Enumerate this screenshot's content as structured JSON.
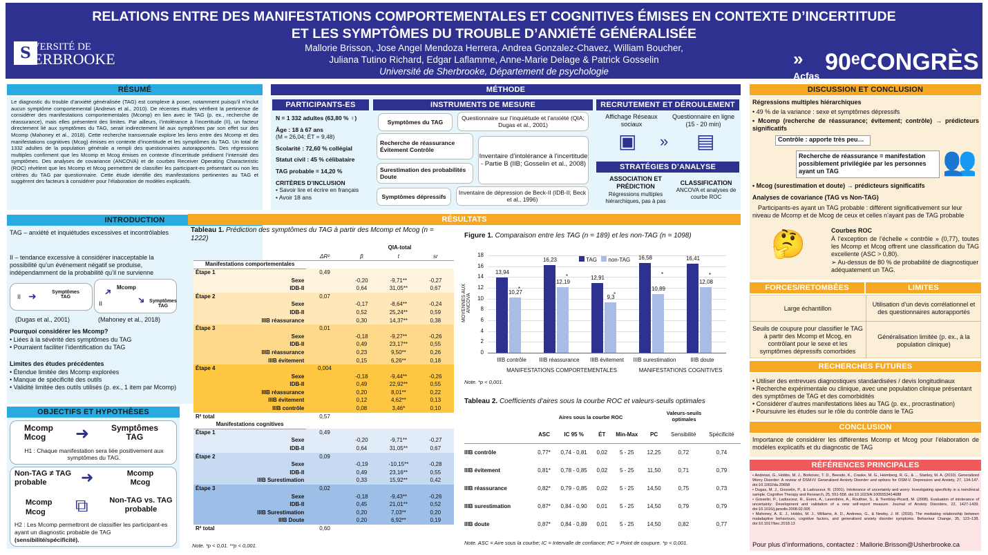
{
  "header": {
    "title_1": "RELATIONS ENTRE DES MANIFESTATIONS COMPORTEMENTALES ET COGNITIVES ÉMISES EN CONTEXTE D’INCERTITUDE",
    "title_2": "ET LES SYMPTÔMES DU TROUBLE D’ANXIÉTÉ GÉNÉRALISÉE",
    "authors_1": "Mallorie Brisson, Jose Angel Mendoza Herrera, Andrea Gonzalez-Chavez, William Boucher,",
    "authors_2": "Juliana Tutino Richard, Edgar Laflamme, Anne-Marie Delage & Patrick Gosselin",
    "affil": "Université de Sherbrooke, Département de psychologie",
    "univ_1": "UNIVERSITÉ DE",
    "univ_2": "SHERBROOKE",
    "acfas": "Acfas",
    "congres": "90ᵉCONGRÈS"
  },
  "resume": {
    "title": "RÉSUMÉ",
    "text": "Le diagnostic du trouble d’anxiété généralisée (TAG) est complexe à poser, notamment puisqu’il n’inclut aucun symptôme comportemental (Andrews et al., 2010). De récentes études vérifient la pertinence de considérer des manifestations comportementales (Mcomp) en lien avec le TAG (p. ex., recherche de réassurance), mais elles présentent des limites. Par ailleurs, l’intolérance à l’incertitude (II), un facteur directement lié aux symptômes du TAG, serait indirectement lié aux symptômes par son effet sur des Mcomp (Mahoney et al., 2018). Cette recherche transversale explore les liens entre des Mcomp et des manifestations cognitives (Mcog) émises en contexte d’incertitude et les symptômes du TAG. Un total de 1332 adultes de la population générale a rempli des questionnaires autorapportés. Des régressions multiples confirment que les Mcomp et Mcog émises en contexte d’incertitude prédisent l’intensité des symptômes. Des analyses de covariance (ANCOVA) et de courbes Receiver Operating Characteristic (ROC) révèlent que les Mcomp et Mcog permettent de classifier les participant-es présentant ou non les critères du TAG par questionnaire. Cette étude identifie des manifestations pertinentes au TAG et suggèrent des facteurs à considérer pour l’élaboration de modèles explicatifs."
  },
  "intro": {
    "title": "INTRODUCTION",
    "tag": "TAG – anxiété et inquiétudes excessives et incontrôlables",
    "ii": "II – tendance excessive à considérer inacceptable la possibilité qu’un événement négatif se produise, indépendamment de la probabilité qu’il ne survienne",
    "d1_ii": "II",
    "d1_sym": "Symptômes TAG",
    "d2_ii": "II",
    "d2_mcomp": "Mcomp",
    "d2_sym": "Symptômes TAG",
    "cite1": "(Dugas et al., 2001)",
    "cite2": "(Mahoney et al., 2018)",
    "q": "Pourquoi considérer les Mcomp?",
    "q_items": [
      "Liées à la sévérité des symptômes du TAG",
      "Pourraient faciliter l’identification du TAG"
    ],
    "lim": "Limites des études précédentes",
    "lim_items": [
      "Étendue limitée des Mcomp explorées",
      "Manque de spécificité des outils",
      "Validité limitée des outils utilisés (p. ex., 1 item par Mcomp)"
    ]
  },
  "obj": {
    "title": "OBJECTIFS ET HYPOTHÈSES",
    "h1_left": "Mcomp Mcog",
    "h1_right": "Symptômes TAG",
    "h1": "H1 : Chaque manifestation sera liée positivement aux symptômes du TAG.",
    "h2_a": "Non-TAG ≠ TAG probable",
    "h2_b": "Mcomp Mcog",
    "h2_c": "Mcomp Mcog",
    "h2_d": "Non-TAG vs. TAG probable",
    "h2": "H2 : Les Mcomp permettront de classifier les participant-es ayant un diagnostic probable de TAG",
    "h2_bold": "(sensibilité/spécificité)."
  },
  "methode": {
    "title": "MÉTHODE",
    "participants": {
      "title": "PARTICIPANTS-ES",
      "n": "N = 1 332 adultes (63,80 % ♀)",
      "age": "Âge : 18 à 67 ans",
      "age_sub": "(M = 26,04; ÉT = 9,48)",
      "scol": "Scolarité : 72,60 % collégial",
      "statut": "Statut civil : 45 % célibataire",
      "tag": "TAG probable = 14,20 %",
      "crit": "CRITÈRES D’INCLUSION",
      "crit_items": [
        "Savoir lire et écrire en français",
        "Avoir 18 ans"
      ]
    },
    "instruments": {
      "title": "INSTRUMENTS DE MESURE",
      "p1": "Symptômes du TAG",
      "p2": "Questionnaire sur l’inquiétude et l’anxiété (QIA; Dugas et al., 2001)",
      "p3": "Recherche de réassurance Évitement Contrôle",
      "p4": "Surestimation des probabilités Doute",
      "p5": "Inventaire d’intolérance à l’incertitude - Partie B (IIB; Gosselin et al., 2008)",
      "p6": "Symptômes dépressifs",
      "p7": "Inventaire de dépression de Beck-II (IDB-II; Beck et al., 1996)"
    },
    "recrut": {
      "title": "RECRUTEMENT ET DÉROULEMENT",
      "a": "Affichage Réseaux sociaux",
      "b": "Questionnaire en ligne (15 - 20 min)"
    },
    "strat": {
      "title": "STRATÉGIES D’ANALYSE",
      "a1": "ASSOCIATION ET PRÉDICTION",
      "a2": "Régressions multiples hiérarchiques, pas à pas",
      "c1": "CLASSIFICATION",
      "c2": "ANCOVA et analyses de courbe ROC"
    }
  },
  "resultats": {
    "title": "RÉSULTATS",
    "t1_title": "Tableau 1.",
    "t1_caption": "Prédiction des symptômes du TAG à partir des Mcomp et Mcog (n = 1222)",
    "t1_head": "QIA-total",
    "t1_cols": [
      "",
      "ΔR²",
      "β",
      "t",
      "sr"
    ],
    "t1_note": "Note. *p < 0,01. **p < 0,001.",
    "t1_rows": [
      [
        "Manifestations comportementales",
        "",
        "",
        "",
        ""
      ],
      [
        "Étape 1",
        "0,49",
        "",
        "",
        ""
      ],
      [
        "Sexe",
        "",
        "-0,20",
        "-9,71**",
        "-0,27"
      ],
      [
        "IDB-II",
        "",
        "0,64",
        "31,05**",
        "0,67"
      ],
      [
        "Étape 2",
        "0,07",
        "",
        "",
        ""
      ],
      [
        "Sexe",
        "",
        "-0,17",
        "-8,64**",
        "-0,24"
      ],
      [
        "IDB-II",
        "",
        "0,52",
        "25,24**",
        "0,59"
      ],
      [
        "IIIB réassurance",
        "",
        "0,30",
        "14,37**",
        "0,38"
      ],
      [
        "Étape 3",
        "0,01",
        "",
        "",
        ""
      ],
      [
        "Sexe",
        "",
        "-0,18",
        "-9,27**",
        "-0,26"
      ],
      [
        "IDB-II",
        "",
        "0,49",
        "23,17**",
        "0,55"
      ],
      [
        "IIIB réassurance",
        "",
        "0,23",
        "9,50**",
        "0,26"
      ],
      [
        "IIIB évitement",
        "",
        "0,15",
        "6,26**",
        "0,18"
      ],
      [
        "Étape 4",
        "0,004",
        "",
        "",
        ""
      ],
      [
        "Sexe",
        "",
        "-0,18",
        "-9,44**",
        "-0,26"
      ],
      [
        "IDB-II",
        "",
        "0,49",
        "22,92**",
        "0,55"
      ],
      [
        "IIIB réassurance",
        "",
        "0,20",
        "8,01**",
        "0,22"
      ],
      [
        "IIIB évitement",
        "",
        "0,12",
        "4,62**",
        "0,13"
      ],
      [
        "IIIB contrôle",
        "",
        "0,08",
        "3,46*",
        "0,10"
      ],
      [
        "R² total",
        "0,57",
        "",
        "",
        ""
      ],
      [
        "Manifestations cognitives",
        "",
        "",
        "",
        ""
      ],
      [
        "Étape 1",
        "0,49",
        "",
        "",
        ""
      ],
      [
        "Sexe",
        "",
        "-0,20",
        "-9,71**",
        "-0,27"
      ],
      [
        "IDB-II",
        "",
        "0,64",
        "31,05**",
        "0,67"
      ],
      [
        "Étape 2",
        "0,09",
        "",
        "",
        ""
      ],
      [
        "Sexe",
        "",
        "-0,19",
        "-10,15**",
        "-0,28"
      ],
      [
        "IDB-II",
        "",
        "0,49",
        "23,16**",
        "0,55"
      ],
      [
        "IIIB Surestimation",
        "",
        "0,33",
        "15,92**",
        "0,42"
      ],
      [
        "Étape 3",
        "0,02",
        "",
        "",
        ""
      ],
      [
        "Sexe",
        "",
        "-0,18",
        "-9,43**",
        "-0,26"
      ],
      [
        "IDB-II",
        "",
        "0,45",
        "21,01**",
        "0,52"
      ],
      [
        "IIIB Surestimation",
        "",
        "0,20",
        "7,03**",
        "0,20"
      ],
      [
        "IIIB Doute",
        "",
        "0,20",
        "6,92**",
        "0,19"
      ],
      [
        "R² total",
        "0,60",
        "",
        "",
        ""
      ]
    ],
    "fig1_title": "Figure 1.",
    "fig1_caption": "Comparaison entre les TAG (n = 189) et les non-TAG (n = 1098)",
    "fig1_note": "Note. *p < 0,001.",
    "t2_title": "Tableau 2.",
    "t2_caption": "Coefficients d’aires sous la courbe ROC et valeurs-seuils optimales",
    "t2_h1": "Aires sous la courbe ROC",
    "t2_h2": "Valeurs-seuils optimales",
    "t2_cols": [
      "",
      "ASC",
      "IC 95 %",
      "ÉT",
      "Min-Max",
      "PC",
      "Sensibilité",
      "Spécificité"
    ],
    "t2_rows": [
      [
        "IIIB contrôle",
        "0,77*",
        "0,74 - 0,81",
        "0,02",
        "5 - 25",
        "12,25",
        "0,72",
        "0,74"
      ],
      [
        "IIIB évitement",
        "0,81*",
        "0,78 - 0,85",
        "0,02",
        "5 - 25",
        "11,50",
        "0,71",
        "0,79"
      ],
      [
        "IIIB réassurance",
        "0,82*",
        "0,79 - 0,85",
        "0,02",
        "5 - 25",
        "14,50",
        "0,75",
        "0,73"
      ],
      [
        "IIIB surestimation",
        "0,87*",
        "0,84 - 0,90",
        "0,01",
        "5 - 25",
        "14,50",
        "0,79",
        "0,79"
      ],
      [
        "IIIB doute",
        "0,87*",
        "0,84 - 0,89",
        "0,01",
        "5 - 25",
        "14,50",
        "0,82",
        "0,77"
      ]
    ],
    "t2_note": "Note. ASC = Aire sous la courbe; IC = Intervalle de confiance; PC = Point de coupure. *p < 0,001."
  },
  "chart_data": {
    "type": "bar",
    "categories": [
      "IIIB contrôle",
      "IIIB réassurance",
      "IIIB évitement",
      "IIIB surestimation",
      "IIIB doute"
    ],
    "series": [
      {
        "name": "TAG",
        "values": [
          13.94,
          16.23,
          12.91,
          16.58,
          16.41
        ]
      },
      {
        "name": "non-TAG",
        "values": [
          10.27,
          12.19,
          9.3,
          10.89,
          12.08
        ]
      }
    ],
    "value_labels": {
      "TAG": [
        "13,94",
        "16,23",
        "12,91",
        "16,58",
        "16,41"
      ],
      "non-TAG": [
        "10,27",
        "12,19",
        "9,3",
        "10,89",
        "12,08"
      ]
    },
    "ylabel": "MOYENNES AUX ANCOVA",
    "group_labels": [
      "MANIFESTATIONS COMPORTEMENTALES",
      "MANIFESTATIONS COGNITIVES"
    ],
    "ylim": [
      0,
      18
    ],
    "yticks": [
      0,
      2,
      4,
      6,
      8,
      10,
      12,
      14,
      16,
      18
    ],
    "colors": {
      "TAG": "#2E3190",
      "non-TAG": "#A9BCE6"
    },
    "legend": "top",
    "grid": true,
    "significance": "*"
  },
  "disc": {
    "title": "DISCUSSION ET CONCLUSION",
    "reg": "Régressions multiples hiérarchiques",
    "b1": "49 % de la variance : sexe et symptômes dépressifs",
    "b2": "Mcomp (recherche de réassurance; évitement; contrôle) → prédicteurs significatifs",
    "c1": "Contrôle : apporte très peu…",
    "c2": "Recherche de réassurance = manifestation possiblement privilégiée par les personnes ayant un TAG",
    "b3": "Mcog (surestimation et doute) → prédicteurs significatifs",
    "anc": "Analyses de covariance (TAG vs Non-TAG)",
    "anc_t": "Participants-es ayant un TAG probable : différent significativement sur leur niveau de Mcomp et de Mcog de ceux et celles n’ayant pas de TAG probable",
    "roc": "Courbes ROC",
    "roc_t": "À l’exception de l’échelle « contrôle » (0,77), toutes les Mcomp et Mcog offrent une classification du TAG excellente (ASC > 0,80).",
    "roc_b": "Au-dessus de 80 % de probabilité de diagnostiquer adéquatement un TAG."
  },
  "forces": {
    "title": "FORCES/RETOMBÉES",
    "limites": "LIMITES",
    "f1": "Large échantillon",
    "l1": "Utilisation d’un devis corrélationnel et des questionnaires autorapportés",
    "f2": "Seuils de coupure pour classifier le TAG à partir des Mcomp et Mcog, en contrôlant pour le sexe et les symptômes dépressifs comorbides",
    "l2": "Généralisation limitée (p. ex., à la population clinique)"
  },
  "futures": {
    "title": "RECHERCHES FUTURES",
    "items": [
      "Utiliser des entrevues diagnostiques standardisées / devis longitudinaux",
      "Recherche expérimentale ou clinique, avec une population clinique présentant des symptômes de TAG et des comorbidités",
      "Considérer d’autres manifestations liées au TAG (p. ex., procrastination)",
      "Poursuivre les études sur le rôle du contrôle dans le TAG"
    ]
  },
  "conclusion": {
    "title": "CONCLUSION",
    "text": "Importance de considérer les différentes Mcomp et Mcog pour l’élaboration de modèles explicatifs et du diagnostic de TAG"
  },
  "refs": {
    "title": "RÉFÉRENCES PRINCIPALES",
    "items": [
      "Andrews, G., Hobbs, M. J., Borkovec, T. D., Beesdo, K., Craske, M. G., Heimberg, R. G., & ... Stanley, M. A. (2010). Generalized Worry Disorder: A review of DSM-IV Generalized Anxiety Disorder and options for DSM-V. Depression and Anxiety, 27, 134-147. doi:10.1002/da.20658",
      "Dugas, M. J., Gosselin, P., & Ladouceur, R. (2001). Intolerance of uncertainty and worry: Investigating specificity in a nonclinical sample. Cognitive Therapy and Research, 25, 551-558. doi:10.1023/A:1005553414688",
      "Gosselin, P., Ladouceur, R., Evers, A., Laverdière, A., Routhier, S., & Tremblay-Picard, M. (2008). Evaluation of intolerance of uncertainty: Development and validation of a new self-report measure. Journal of Anxiety Disorders, 22, 1427-1439. doi:10.1016/j.janxdis.2008.02.005",
      "Mahoney, A. E. J., Hobbs, M. J., Williams, A. D., Andrews, G., & Newby, J. M. (2018). The mediating relationship between maladaptive behaviours, cognitive factors, and generalised anxiety disorder symptoms. Behaviour Change, 35, 123–138. doi:10.1017/bec.2018.13"
    ],
    "contact": "Pour plus d’informations, contactez : Mallorie.Brisson@Usherbrooke.ca"
  }
}
